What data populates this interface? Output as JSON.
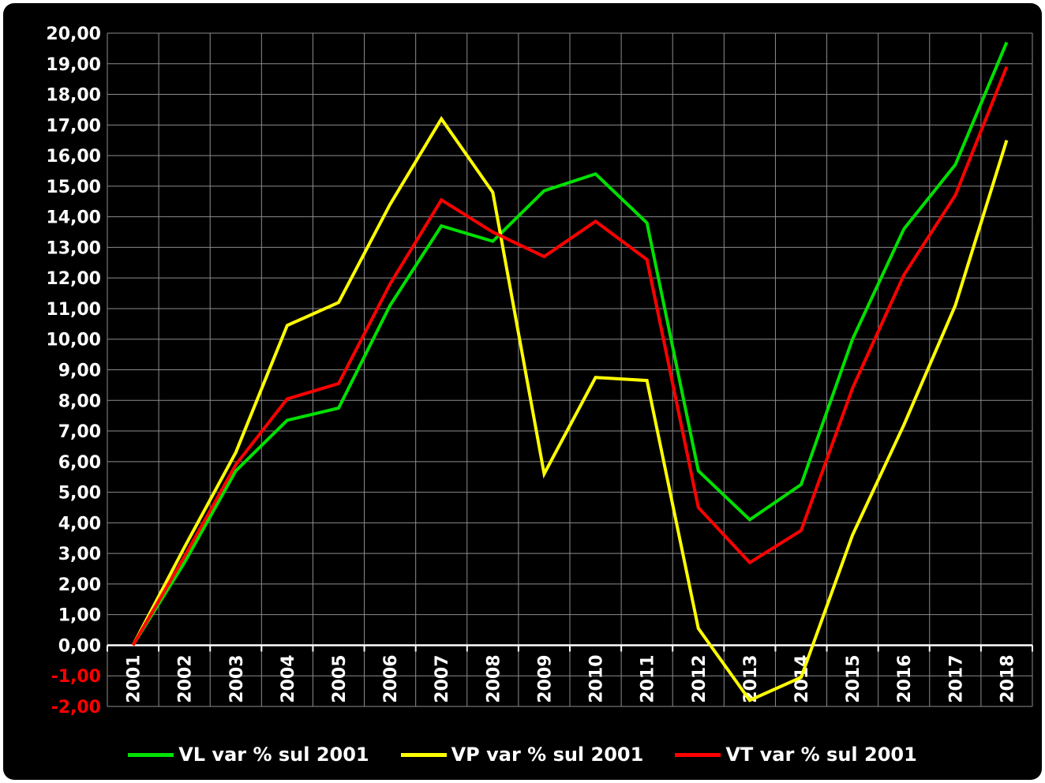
{
  "chart_data": {
    "type": "line",
    "title": "",
    "xlabel": "",
    "ylabel": "",
    "categories": [
      "2001",
      "2002",
      "2003",
      "2004",
      "2005",
      "2006",
      "2007",
      "2008",
      "2009",
      "2010",
      "2011",
      "2012",
      "2013",
      "2014",
      "2015",
      "2016",
      "2017",
      "2018"
    ],
    "ylim": [
      -2,
      20
    ],
    "yticks": [
      "-2,00",
      "-1,00",
      "0,00",
      "1,00",
      "2,00",
      "3,00",
      "4,00",
      "5,00",
      "6,00",
      "7,00",
      "8,00",
      "9,00",
      "10,00",
      "11,00",
      "12,00",
      "13,00",
      "14,00",
      "15,00",
      "16,00",
      "17,00",
      "18,00",
      "19,00",
      "20,00"
    ],
    "ytick_values": [
      -2,
      -1,
      0,
      1,
      2,
      3,
      4,
      5,
      6,
      7,
      8,
      9,
      10,
      11,
      12,
      13,
      14,
      15,
      16,
      17,
      18,
      19,
      20
    ],
    "grid": true,
    "legend_position": "bottom",
    "colors": {
      "background": "#000000",
      "grid": "#8c8c8c",
      "axis_text": "#ffffff",
      "negative_text": "#ff0000"
    },
    "series": [
      {
        "name": "VL var % sul 2001",
        "color": "#00e000",
        "values": [
          0,
          2.7,
          5.7,
          7.35,
          7.75,
          11.1,
          13.7,
          13.2,
          14.85,
          15.4,
          13.8,
          5.7,
          4.1,
          5.25,
          10.0,
          13.6,
          15.7,
          19.7
        ]
      },
      {
        "name": "VP var % sul 2001",
        "color": "#ffff00",
        "values": [
          0,
          3.2,
          6.3,
          10.45,
          11.2,
          14.4,
          17.2,
          14.8,
          5.6,
          8.75,
          8.65,
          0.55,
          -1.8,
          -1.05,
          3.6,
          7.2,
          11.1,
          16.5
        ]
      },
      {
        "name": "VT var % sul 2001",
        "color": "#ff0000",
        "values": [
          0,
          2.9,
          5.9,
          8.05,
          8.55,
          11.8,
          14.55,
          13.5,
          12.7,
          13.85,
          12.6,
          4.5,
          2.7,
          3.75,
          8.4,
          12.1,
          14.7,
          18.9
        ]
      }
    ]
  }
}
